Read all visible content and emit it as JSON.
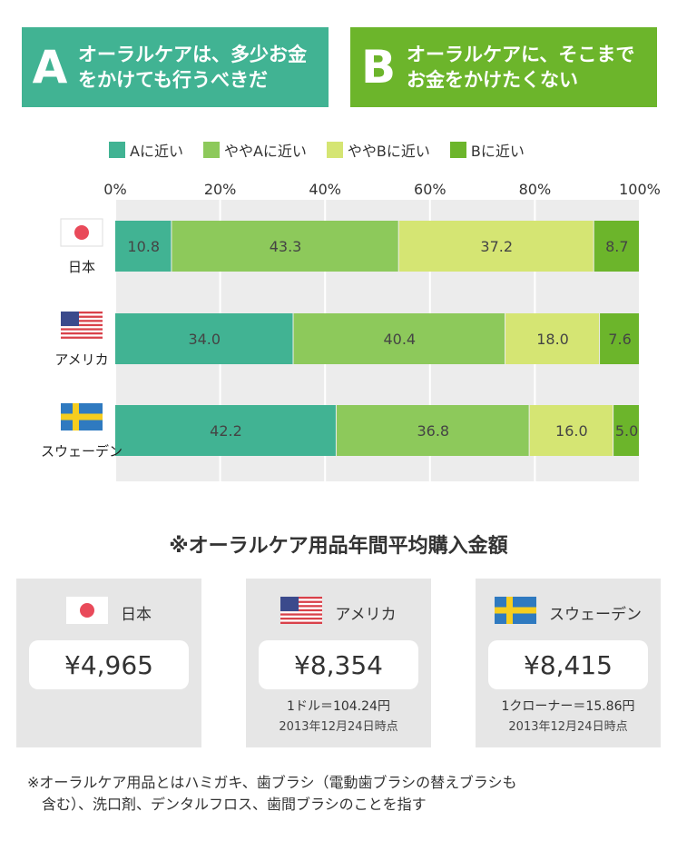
{
  "statements": {
    "a": {
      "letter": "A",
      "line1": "オーラルケアは、多少お金",
      "line2": "をかけても行うべきだ",
      "color": "#41b393"
    },
    "b": {
      "letter": "B",
      "line1": "オーラルケアに、そこまで",
      "line2": "お金をかけたくない",
      "color": "#6cb52b"
    }
  },
  "chart_data": {
    "type": "bar",
    "orientation": "horizontal",
    "stacked": true,
    "categories": [
      "日本",
      "アメリカ",
      "スウェーデン"
    ],
    "series": [
      {
        "name": "Aに近い",
        "color": "#41b393",
        "values": [
          10.8,
          34.0,
          42.2
        ]
      },
      {
        "name": "ややAに近い",
        "color": "#8dc95b",
        "values": [
          43.3,
          40.4,
          36.8
        ]
      },
      {
        "name": "ややBに近い",
        "color": "#d5e573",
        "values": [
          37.2,
          18.0,
          16.0
        ]
      },
      {
        "name": "Bに近い",
        "color": "#6cb52b",
        "values": [
          8.7,
          7.6,
          5.0
        ]
      }
    ],
    "x_ticks": [
      "0%",
      "20%",
      "40%",
      "60%",
      "80%",
      "100%"
    ],
    "xlim": [
      0,
      100
    ],
    "legend_position": "top"
  },
  "cards_title": "※オーラルケア用品年間平均購入金額",
  "cards": [
    {
      "country": "日本",
      "flag": "japan",
      "value": "¥4,965",
      "note1": "",
      "note2": ""
    },
    {
      "country": "アメリカ",
      "flag": "usa",
      "value": "¥8,354",
      "note1": "1ドル＝104.24円",
      "note2": "2013年12月24日時点"
    },
    {
      "country": "スウェーデン",
      "flag": "sweden",
      "value": "¥8,415",
      "note1": "1クローナー＝15.86円",
      "note2": "2013年12月24日時点"
    }
  ],
  "footnote": {
    "line1": "※オーラルケア用品とはハミガキ、歯ブラシ（電動歯ブラシの替えブラシも",
    "line2": "含む）、洗口剤、デンタルフロス、歯間ブラシのことを指す"
  }
}
